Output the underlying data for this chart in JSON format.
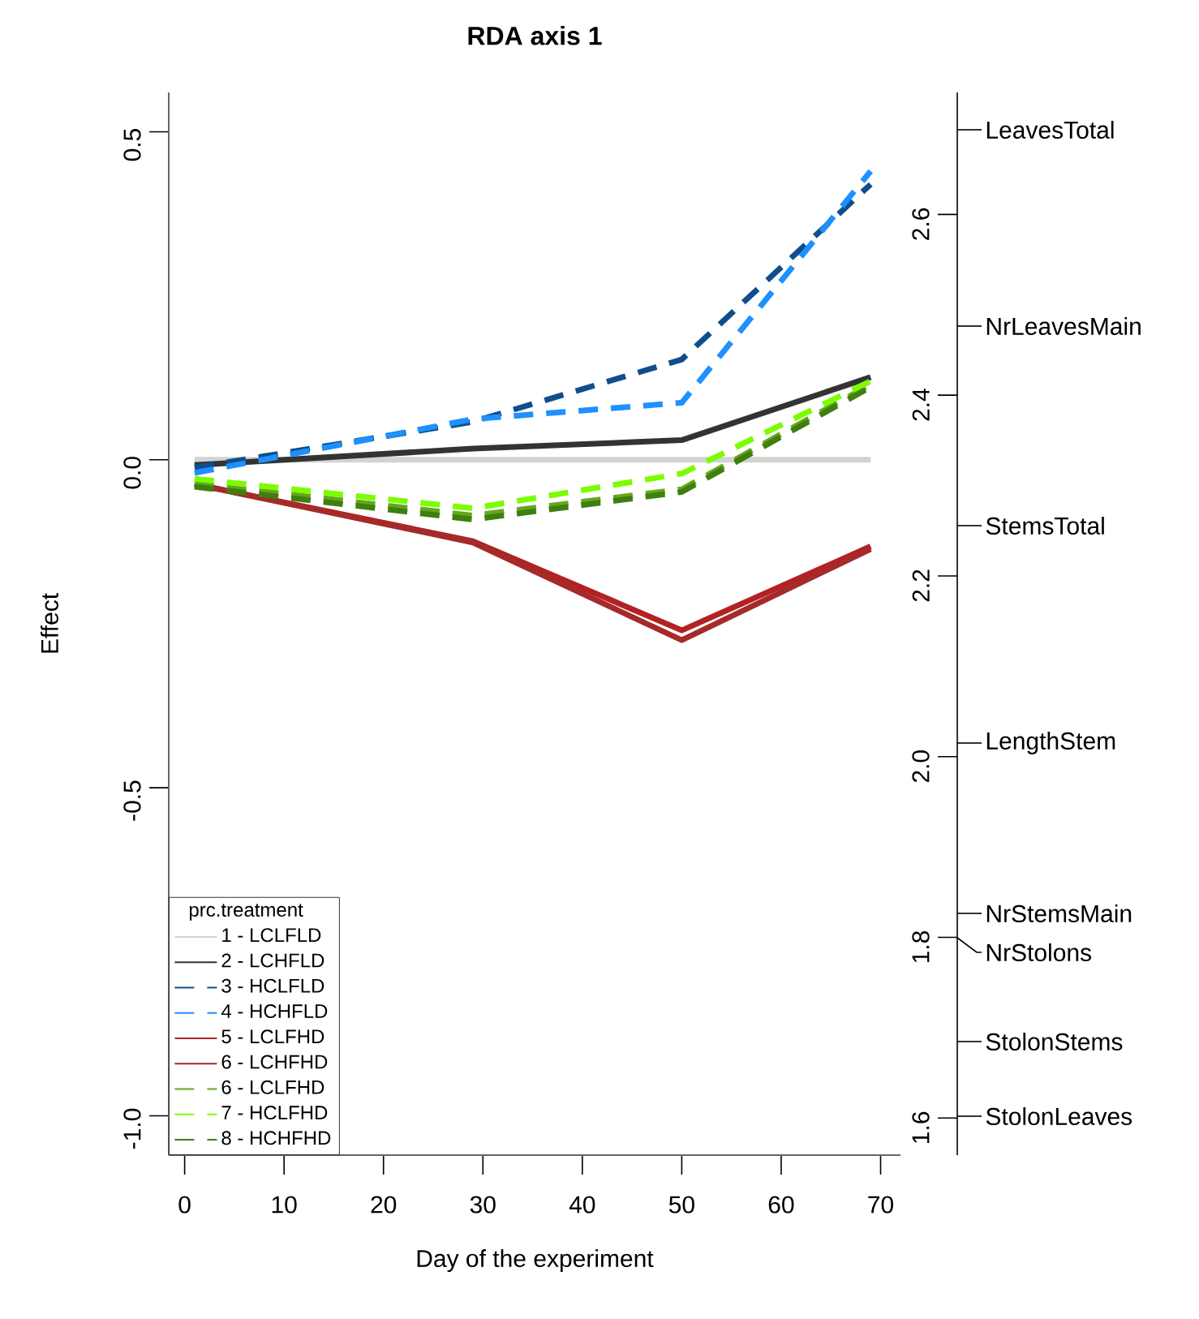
{
  "chart_data": {
    "type": "line",
    "title": "RDA axis 1",
    "xlabel": "Day of the experiment",
    "ylabel": "Effect",
    "legend_title": "prc.treatment",
    "x": [
      1,
      29,
      50,
      69
    ],
    "series": [
      {
        "name": "1 - LCLFLD",
        "color": "#d3d3d3",
        "line_style": "solid",
        "values": [
          0,
          0,
          0,
          0
        ]
      },
      {
        "name": "2 - LCHFLD",
        "color": "#333333",
        "line_style": "solid",
        "values": [
          -0.008,
          0.017,
          0.03,
          0.126
        ]
      },
      {
        "name": "3 - HCLFLD",
        "color": "#104e8b",
        "line_style": "dashed",
        "values": [
          -0.012,
          0.058,
          0.153,
          0.42
        ]
      },
      {
        "name": "4 - HCHFLD",
        "color": "#1e90ff",
        "line_style": "dashed",
        "values": [
          -0.02,
          0.062,
          0.087,
          0.44
        ]
      },
      {
        "name": "5 - LCLFHD",
        "color": "#b22222",
        "line_style": "solid",
        "values": [
          -0.037,
          -0.124,
          -0.26,
          -0.132
        ]
      },
      {
        "name": "6 - LCHFHD",
        "color": "#a52a2a",
        "line_style": "solid",
        "values": [
          -0.037,
          -0.126,
          -0.275,
          -0.136
        ]
      },
      {
        "name": "6 - LCLFHD",
        "color": "#66a61e",
        "line_style": "dashed",
        "values": [
          -0.036,
          -0.085,
          -0.045,
          0.115
        ]
      },
      {
        "name": "7 - HCLFHD",
        "color": "#7cfc00",
        "line_style": "dashed",
        "values": [
          -0.029,
          -0.074,
          -0.021,
          0.12
        ]
      },
      {
        "name": "8 - HCHFHD",
        "color": "#3f7f0f",
        "line_style": "dashed",
        "values": [
          -0.041,
          -0.091,
          -0.049,
          0.111
        ]
      }
    ],
    "xlim": [
      -1.6,
      72
    ],
    "xticks": [
      0,
      10,
      20,
      30,
      40,
      50,
      60,
      70
    ],
    "ylim": [
      -1.06,
      0.56
    ],
    "yticks": [
      {
        "value": -1,
        "label": "-1.0"
      },
      {
        "value": -0.5,
        "label": "-0.5"
      },
      {
        "value": 0,
        "label": "0.0"
      },
      {
        "value": 0.5,
        "label": "0.5"
      }
    ],
    "y2lim": [
      1.559,
      2.735
    ],
    "y2ticks": [
      1.6,
      1.8,
      {
        "value": 2,
        "label": "2.0"
      },
      2.2,
      2.4,
      2.6
    ],
    "annotations": [
      "LeavesTotal",
      "NrLeavesMain",
      "StemsTotal",
      "LengthStem",
      "NrStemsMain",
      "NrStolons",
      "StolonStems",
      "StolonLeaves"
    ],
    "legend": "bottom left",
    "grid": false,
    "marker": "none"
  }
}
